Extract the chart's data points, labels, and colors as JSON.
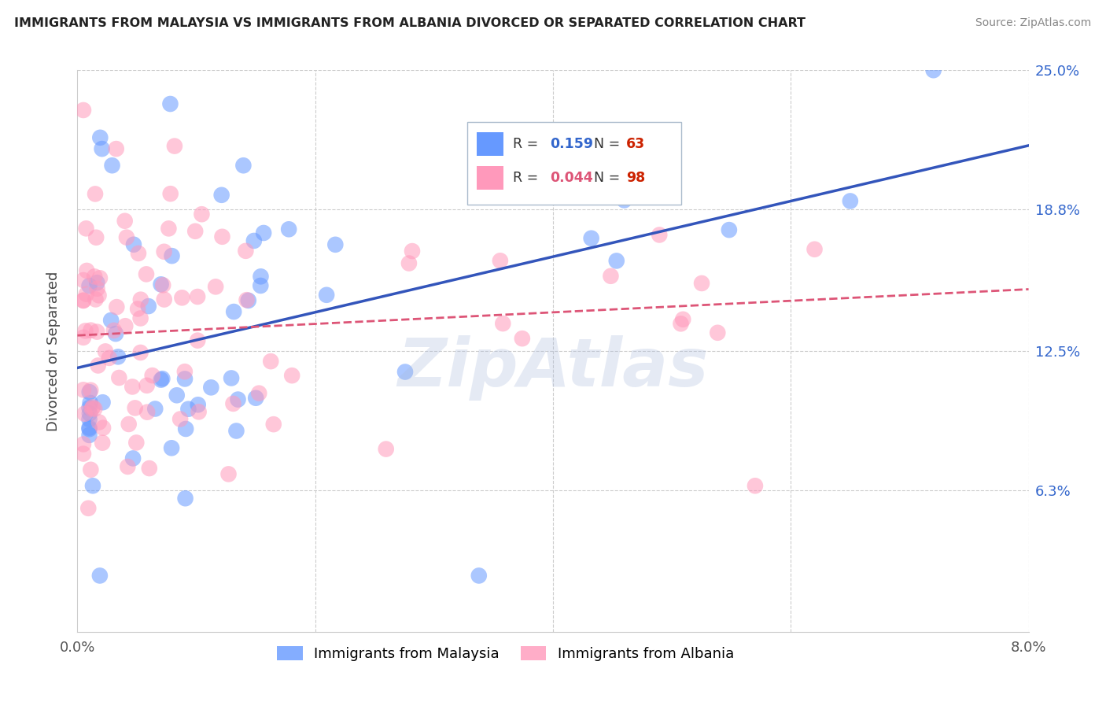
{
  "title": "IMMIGRANTS FROM MALAYSIA VS IMMIGRANTS FROM ALBANIA DIVORCED OR SEPARATED CORRELATION CHART",
  "source": "Source: ZipAtlas.com",
  "ylabel_label": "Divorced or Separated",
  "xlim": [
    0.0,
    0.08
  ],
  "ylim": [
    0.0,
    0.25
  ],
  "malaysia_color": "#6699ff",
  "albania_color": "#ff99bb",
  "malaysia_R": 0.159,
  "malaysia_N": 63,
  "albania_R": 0.044,
  "albania_N": 98,
  "malaysia_line_color": "#3355bb",
  "albania_line_color": "#dd5577",
  "legend_R_color": "#3366cc",
  "legend_N_color": "#cc2200",
  "xticks": [
    0.0,
    0.02,
    0.04,
    0.06,
    0.08
  ],
  "xticklabels": [
    "0.0%",
    "",
    "",
    "",
    "8.0%"
  ],
  "yticks": [
    0.0,
    0.063,
    0.125,
    0.188,
    0.25
  ],
  "yticklabels_right": [
    "",
    "6.3%",
    "12.5%",
    "18.8%",
    "25.0%"
  ],
  "grid_color": "#cccccc",
  "spine_color": "#cccccc",
  "watermark_text": "ZipAtlas",
  "watermark_color": "#aabbdd",
  "bottom_legend_malaysia": "Immigrants from Malaysia",
  "bottom_legend_albania": "Immigrants from Albania"
}
